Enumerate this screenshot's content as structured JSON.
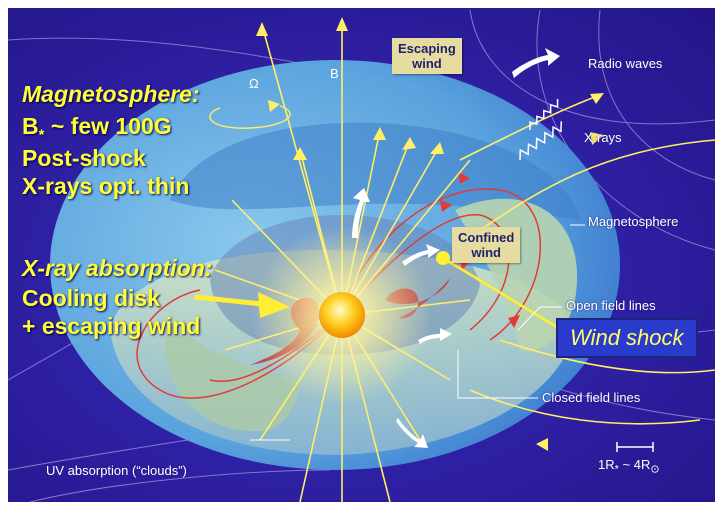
{
  "colors": {
    "background": "#2a1c9a",
    "border": "#ffffff",
    "highlight_text": "#ffff33",
    "field_lines": "#ffee66",
    "shock_box": "#2a3acb"
  },
  "left_panel": {
    "magnetosphere_heading": "Magnetosphere:",
    "b_field_prefix": "B",
    "b_field_subscript": "*",
    "b_field_value": " ~ few 100G",
    "post_shock": "Post-shock",
    "xrays_thin": "X-rays opt. thin",
    "absorption_heading": "X-ray absorption:",
    "cooling_disk": "Cooling disk",
    "escaping_wind": "+ escaping wind"
  },
  "labels": {
    "omega_axis": "Ω",
    "b_axis": "B",
    "escaping_wind_box": [
      "Escaping",
      "wind"
    ],
    "confined_wind_box": [
      "Confined",
      "wind"
    ],
    "radio_waves": "Radio waves",
    "x_rays": "X-rays",
    "magnetosphere": "Magnetosphere",
    "open_field_lines": "Open field lines",
    "wind_shock": "Wind shock",
    "closed_field_lines": "Closed field lines",
    "uv_absorption": "UV absorption (“clouds”)"
  },
  "scale_bar": {
    "prefix": "1R",
    "star_sub": "*",
    "middle": " ~ 4R",
    "sun_sub": "⊙"
  }
}
